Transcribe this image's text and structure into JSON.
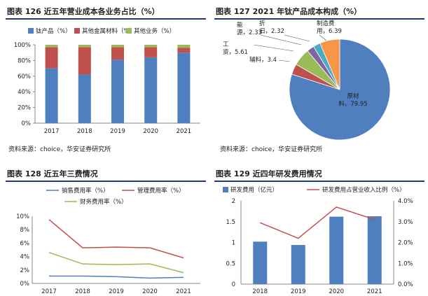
{
  "chart_data": [
    {
      "type": "bar",
      "stacked": true,
      "title": "图表 126 近五年营业成本各业务占比（%）",
      "source": "资料来源：choice，华安证券研究所",
      "categories": [
        "2017",
        "2018",
        "2019",
        "2020",
        "2021"
      ],
      "series": [
        {
          "name": "钛产品（%）",
          "color": "#4f7fbf",
          "values": [
            70,
            62,
            81,
            84,
            90
          ]
        },
        {
          "name": "其他金属材料（%）",
          "color": "#c0504d",
          "values": [
            27,
            35,
            16,
            13,
            6
          ]
        },
        {
          "name": "其他业务（%）",
          "color": "#9bbb59",
          "values": [
            3,
            3,
            3,
            3,
            4
          ]
        }
      ],
      "ylim": [
        0,
        100
      ],
      "yticks": [
        "0%",
        "20%",
        "40%",
        "60%",
        "80%",
        "100%"
      ],
      "legend": "top"
    },
    {
      "type": "pie",
      "title": "图表 127 2021 年钛产品成本构成（%）",
      "source": "资料来源：choice，华安证券研究所",
      "slices": [
        {
          "label": "原材料",
          "value": 79.95,
          "text": "原材\n料，79.95",
          "color": "#4f7fbf"
        },
        {
          "label": "辅料",
          "value": 3.4,
          "text": "辅料，3.4",
          "color": "#c0504d"
        },
        {
          "label": "工资",
          "value": 5.61,
          "text": "工\n资，5.61",
          "color": "#9bbb59"
        },
        {
          "label": "能源",
          "value": 2.33,
          "text": "能\n源，2.33",
          "color": "#8064a2"
        },
        {
          "label": "折旧",
          "value": 2.32,
          "text": "折\n旧，2.32",
          "color": "#4bacc6"
        },
        {
          "label": "制造费用",
          "value": 6.39,
          "text": "制造费\n用，6.39",
          "color": "#f79646"
        }
      ]
    },
    {
      "type": "line",
      "title": "图表 128 近五年三费情况",
      "x": [
        "2017",
        "2018",
        "2019",
        "2020",
        "2021"
      ],
      "series": [
        {
          "name": "销售费用率（%）",
          "color": "#4f7fbf",
          "values": [
            1.1,
            1.1,
            1.0,
            0.8,
            0.9
          ]
        },
        {
          "name": "管理费用率（%）",
          "color": "#c0504d",
          "values": [
            9.5,
            5.3,
            5.4,
            5.3,
            3.8
          ]
        },
        {
          "name": "财务费用率（%）",
          "color": "#9bbb59",
          "values": [
            4.6,
            2.9,
            2.8,
            2.9,
            1.6
          ]
        }
      ],
      "ylim": [
        0,
        10
      ],
      "yticks": [
        "0%",
        "2%",
        "4%",
        "6%",
        "8%",
        "10%"
      ],
      "legend": "top"
    },
    {
      "type": "bar+line",
      "title": "图表 129 近四年研发费用情况",
      "categories": [
        "2018",
        "2019",
        "2020",
        "2021"
      ],
      "bar_series": {
        "name": "研发费用（亿元）",
        "color": "#4f7fbf",
        "values": [
          1.02,
          0.94,
          1.62,
          1.63
        ]
      },
      "line_series": {
        "name": "研发费用占营业收入比例（%）",
        "color": "#c0504d",
        "values": [
          2.95,
          2.2,
          3.7,
          3.1
        ]
      },
      "ylim_left": [
        0,
        2
      ],
      "yticks_left": [
        "0",
        "0.5",
        "1",
        "1.5",
        "2"
      ],
      "ylim_right": [
        0,
        4
      ],
      "yticks_right": [
        "0.0%",
        "1.0%",
        "2.0%",
        "3.0%",
        "4.0%"
      ],
      "legend": "top"
    }
  ]
}
